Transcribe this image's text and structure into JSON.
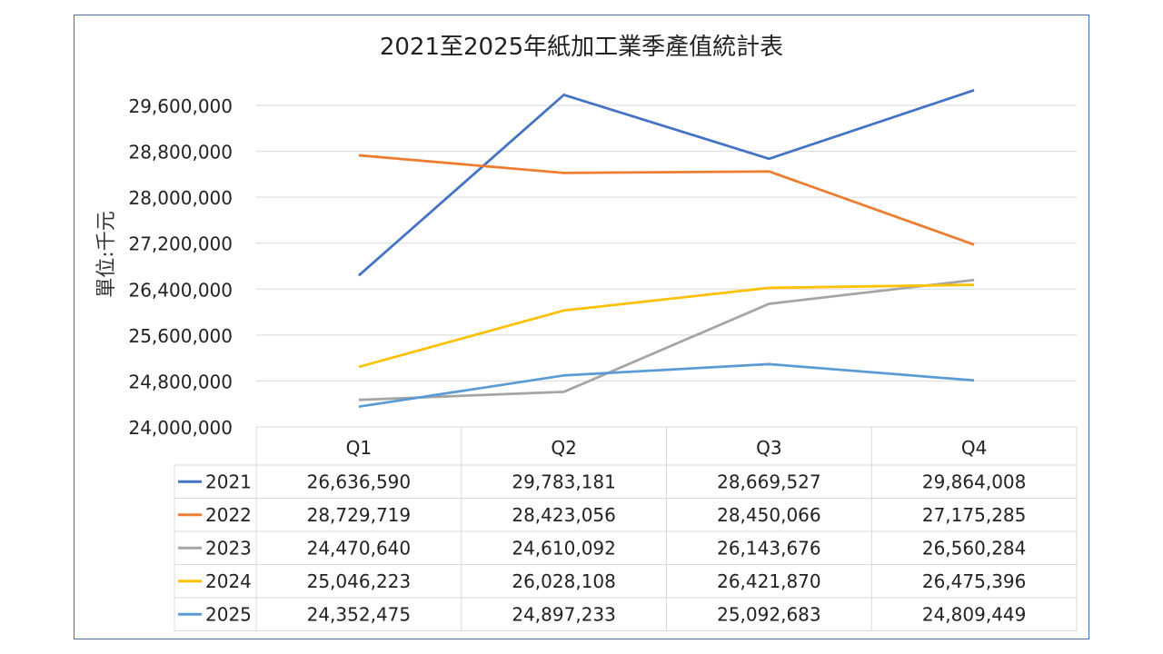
{
  "chart_data": {
    "type": "line",
    "title": "2021至2025年紙加工業季產值統計表",
    "ylabel": "單位:千元",
    "xlabel": "",
    "categories": [
      "Q1",
      "Q2",
      "Q3",
      "Q4"
    ],
    "ylim": [
      24000000,
      29600000
    ],
    "yticks": [
      24000000,
      24800000,
      25600000,
      26400000,
      27200000,
      28000000,
      28800000,
      29600000
    ],
    "ytick_labels": [
      "24,000,000",
      "24,800,000",
      "25,600,000",
      "26,400,000",
      "27,200,000",
      "28,000,000",
      "28,800,000",
      "29,600,000"
    ],
    "grid": true,
    "legend": "data-table",
    "series": [
      {
        "name": "2021",
        "color": "#4472c4",
        "values": [
          26636590,
          29783181,
          28669527,
          29864008
        ],
        "labels": [
          "26,636,590",
          "29,783,181",
          "28,669,527",
          "29,864,008"
        ]
      },
      {
        "name": "2022",
        "color": "#ed7d31",
        "values": [
          28729719,
          28423056,
          28450066,
          27175285
        ],
        "labels": [
          "28,729,719",
          "28,423,056",
          "28,450,066",
          "27,175,285"
        ]
      },
      {
        "name": "2023",
        "color": "#a5a5a5",
        "values": [
          24470640,
          24610092,
          26143676,
          26560284
        ],
        "labels": [
          "24,470,640",
          "24,610,092",
          "26,143,676",
          "26,560,284"
        ]
      },
      {
        "name": "2024",
        "color": "#ffc000",
        "values": [
          25046223,
          26028108,
          26421870,
          26475396
        ],
        "labels": [
          "25,046,223",
          "26,028,108",
          "26,421,870",
          "26,475,396"
        ]
      },
      {
        "name": "2025",
        "color": "#5b9bd5",
        "values": [
          24352475,
          24897233,
          25092683,
          24809449
        ],
        "labels": [
          "24,352,475",
          "24,897,233",
          "25,092,683",
          "24,809,449"
        ]
      }
    ]
  }
}
